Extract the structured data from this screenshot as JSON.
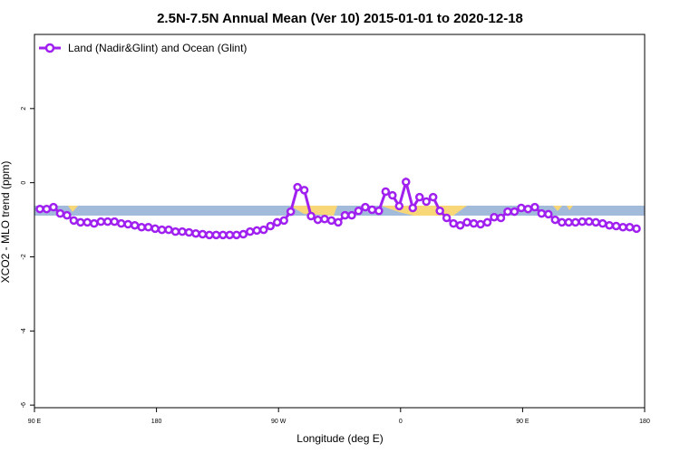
{
  "chart_data": {
    "type": "line",
    "title": "2.5N-7.5N Annual Mean (Ver 10)   2015-01-01 to 2020-12-18",
    "x_label": "Longitude (deg E)",
    "y_label": "XCO2 - MLO trend (ppm)",
    "xlim": [
      90,
      540
    ],
    "ylim": [
      -6.07,
      4
    ],
    "xticks": [
      {
        "value": 90,
        "label": "90 E"
      },
      180,
      {
        "value": 270,
        "label": "90 W"
      },
      {
        "value": 360,
        "label": "0"
      },
      {
        "value": 450,
        "label": "90 E"
      },
      {
        "value": 540,
        "label": "180"
      }
    ],
    "yticks": [
      -6,
      -4,
      -2,
      0,
      2
    ],
    "legend_position": "top-left",
    "x": [
      94,
      99,
      104,
      109,
      114,
      119,
      124,
      129,
      134,
      139,
      144,
      149,
      154,
      159,
      164,
      169,
      174,
      179,
      184,
      189,
      194,
      199,
      204,
      209,
      214,
      219,
      224,
      229,
      234,
      239,
      244,
      249,
      254,
      259,
      264,
      269,
      274,
      279,
      284,
      289,
      294,
      299,
      304,
      309,
      314,
      319,
      324,
      329,
      334,
      339,
      344,
      349,
      354,
      359,
      364,
      369,
      374,
      379,
      384,
      389,
      394,
      399,
      404,
      409,
      414,
      419,
      424,
      429,
      434,
      439,
      444,
      449,
      454,
      459,
      464,
      469,
      474,
      479,
      484,
      489,
      494,
      499,
      504,
      509,
      514,
      519,
      524,
      529,
      534
    ],
    "series": [
      {
        "name": "Land (Nadir&Glint) and Ocean (Glint)",
        "color": "#a020f0",
        "values": [
          -0.71,
          -0.71,
          -0.66,
          -0.83,
          -0.88,
          -1.02,
          -1.07,
          -1.07,
          -1.1,
          -1.05,
          -1.05,
          -1.05,
          -1.1,
          -1.12,
          -1.15,
          -1.2,
          -1.2,
          -1.24,
          -1.27,
          -1.27,
          -1.32,
          -1.32,
          -1.34,
          -1.37,
          -1.39,
          -1.41,
          -1.41,
          -1.41,
          -1.41,
          -1.41,
          -1.39,
          -1.32,
          -1.29,
          -1.27,
          -1.17,
          -1.07,
          -1.02,
          -0.78,
          -0.12,
          -0.2,
          -0.9,
          -1.0,
          -0.98,
          -1.02,
          -1.07,
          -0.88,
          -0.88,
          -0.76,
          -0.66,
          -0.73,
          -0.76,
          -0.24,
          -0.34,
          -0.63,
          0.02,
          -0.68,
          -0.39,
          -0.51,
          -0.39,
          -0.76,
          -0.95,
          -1.1,
          -1.15,
          -1.07,
          -1.1,
          -1.12,
          -1.07,
          -0.93,
          -0.95,
          -0.78,
          -0.78,
          -0.68,
          -0.71,
          -0.66,
          -0.83,
          -0.85,
          -1.0,
          -1.07,
          -1.07,
          -1.07,
          -1.05,
          -1.05,
          -1.07,
          -1.1,
          -1.15,
          -1.17,
          -1.2,
          -1.2,
          -1.24
        ]
      }
    ]
  }
}
